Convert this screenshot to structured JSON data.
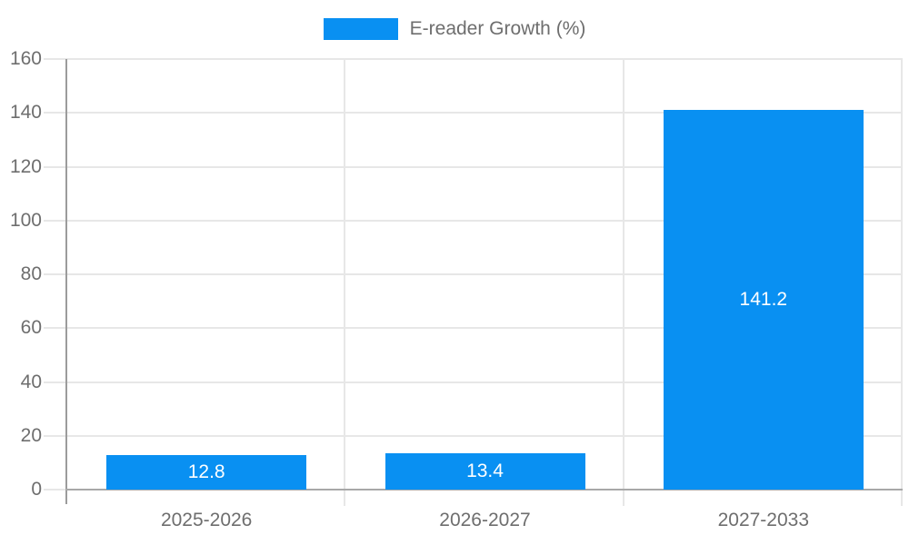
{
  "chart_data": {
    "type": "bar",
    "title": "",
    "legend": {
      "position": "top",
      "label": "E-reader Growth (%)"
    },
    "categories": [
      "2025-2026",
      "2026-2027",
      "2027-2033"
    ],
    "series": [
      {
        "name": "E-reader Growth (%)",
        "values": [
          12.8,
          13.4,
          141.2
        ]
      }
    ],
    "value_labels": [
      "12.8",
      "13.4",
      "141.2"
    ],
    "xlabel": "",
    "ylabel": "",
    "ylim": [
      0,
      160
    ],
    "yticks": [
      0,
      20,
      40,
      60,
      80,
      100,
      120,
      140,
      160
    ],
    "grid": true,
    "colors": {
      "bar": "#0990f2",
      "value_label": "#ffffff",
      "axis_text": "#6e6e6e",
      "gridline": "#e7e7e7",
      "y_axis_line": "#9c9c9c",
      "x_axis_line": "#a8a8a8",
      "background": "#ffffff"
    }
  }
}
